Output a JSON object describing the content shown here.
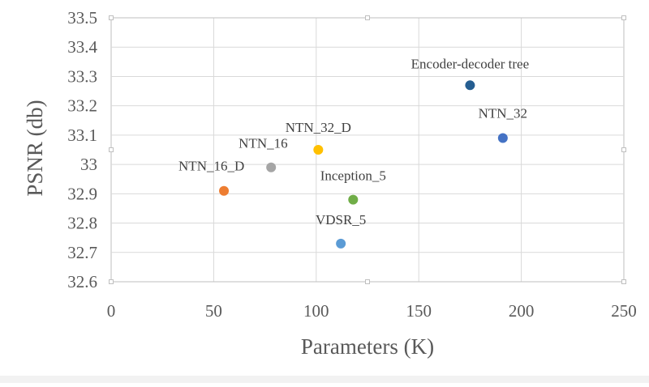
{
  "chart_data": {
    "type": "scatter",
    "title": "",
    "xlabel": "Parameters (K)",
    "ylabel": "PSNR (db)",
    "xlim": [
      0,
      250
    ],
    "ylim": [
      32.6,
      33.5
    ],
    "x_ticks": [
      "0",
      "50",
      "100",
      "150",
      "200",
      "250"
    ],
    "y_ticks": [
      "32.6",
      "32.7",
      "32.8",
      "32.9",
      "33",
      "33.1",
      "33.2",
      "33.3",
      "33.4",
      "33.5"
    ],
    "grid": true,
    "points": [
      {
        "label": "NTN_16_D",
        "x": 55,
        "y": 32.91,
        "color": "#ed7d31"
      },
      {
        "label": "NTN_16",
        "x": 78,
        "y": 32.99,
        "color": "#a5a5a5"
      },
      {
        "label": "NTN_32_D",
        "x": 101,
        "y": 33.05,
        "color": "#ffc000"
      },
      {
        "label": "VDSR_5",
        "x": 112,
        "y": 32.73,
        "color": "#5b9bd5"
      },
      {
        "label": "Inception_5",
        "x": 118,
        "y": 32.88,
        "color": "#70ad47"
      },
      {
        "label": "Encoder-decoder tree",
        "x": 175,
        "y": 33.27,
        "color": "#255e91"
      },
      {
        "label": "NTN_32",
        "x": 191,
        "y": 33.09,
        "color": "#4472c4"
      }
    ]
  }
}
